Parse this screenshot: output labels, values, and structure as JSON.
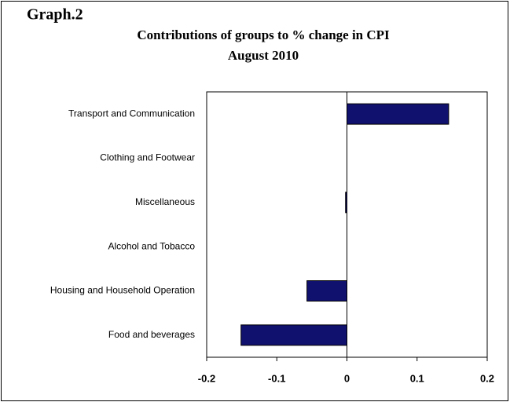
{
  "chart_data": {
    "type": "bar",
    "orientation": "horizontal",
    "label": "Graph.2",
    "title": "Contributions of groups to % change in CPI",
    "subtitle": "August 2010",
    "categories": [
      "Transport and Communication",
      "Clothing and Footwear",
      "Miscellaneous",
      "Alcohol and Tobacco",
      "Housing and Household Operation",
      "Food and beverages"
    ],
    "values": [
      0.145,
      0,
      -0.002,
      0,
      -0.057,
      -0.151
    ],
    "color": "#10106e",
    "xlim": [
      -0.2,
      0.2
    ],
    "xticks": [
      -0.2,
      -0.1,
      0,
      0.1,
      0.2
    ]
  }
}
